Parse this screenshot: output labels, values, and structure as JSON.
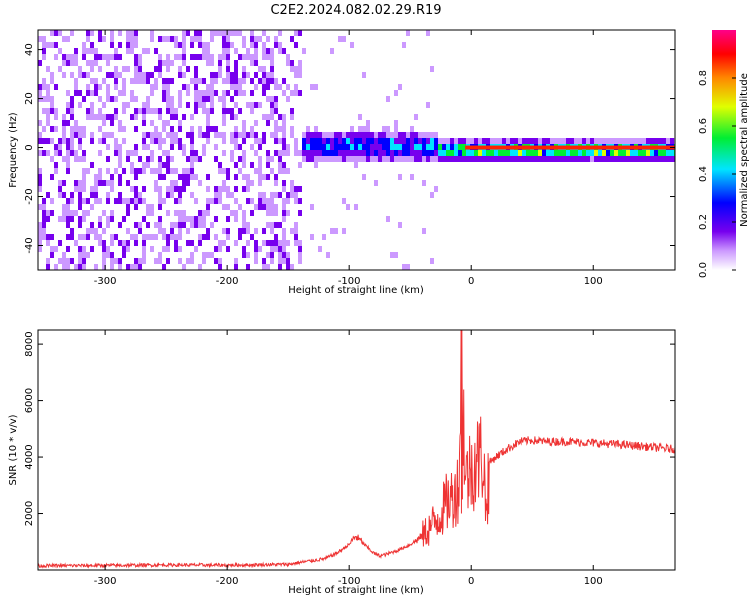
{
  "title": "C2E2.2024.082.02.29.R19",
  "chart_data": [
    {
      "type": "heatmap",
      "name": "spectrogram",
      "xlabel": "Height of straight line (km)",
      "ylabel": "Frequency (Hz)",
      "xlim": [
        -355,
        167
      ],
      "ylim": [
        -50,
        48
      ],
      "xticks": [
        -300,
        -200,
        -100,
        0,
        100
      ],
      "yticks": [
        -40,
        -20,
        0,
        20,
        40
      ],
      "colorbar": {
        "label": "Normalized spectral amplitude",
        "range": [
          0,
          1
        ],
        "ticks": [
          0.0,
          0.2,
          0.4,
          0.6,
          0.8
        ],
        "colormap": "rainbow (white, violet, blue, cyan, green, yellow, red, magenta)"
      },
      "signal_band": {
        "center_hz": 0,
        "description": "narrow high-amplitude band near 0 Hz for heights above about 0 km; broadband noise below about -140 km"
      }
    },
    {
      "type": "line",
      "name": "snr",
      "xlabel": "Height of straight line (km)",
      "ylabel": "SNR (10 * v/v)",
      "xlim": [
        -355,
        167
      ],
      "ylim": [
        0,
        8500
      ],
      "xticks": [
        -300,
        -200,
        -100,
        0,
        100
      ],
      "yticks": [
        2000,
        4000,
        6000,
        8000
      ],
      "color": "#ee3333",
      "series": [
        {
          "x": [
            -355,
            -300,
            -250,
            -200,
            -150,
            -120,
            -110,
            -100,
            -95,
            -90,
            -85,
            -80,
            -75,
            -70,
            -60,
            -50,
            -40,
            -30,
            -25,
            -20,
            -15,
            -10,
            -8,
            -5,
            0,
            5,
            10,
            12,
            15,
            20,
            30,
            40,
            50,
            60,
            80,
            100,
            120,
            140,
            160,
            167
          ],
          "y": [
            150,
            160,
            180,
            170,
            200,
            400,
            600,
            900,
            1200,
            1000,
            800,
            600,
            500,
            550,
            700,
            900,
            1200,
            1700,
            2000,
            2400,
            2600,
            3000,
            8500,
            3200,
            3600,
            3900,
            4100,
            2000,
            3800,
            4000,
            4300,
            4550,
            4600,
            4550,
            4550,
            4500,
            4450,
            4380,
            4300,
            4280
          ]
        }
      ],
      "annotations": [
        {
          "x": -8,
          "y": 8500,
          "text": ""
        }
      ]
    }
  ]
}
